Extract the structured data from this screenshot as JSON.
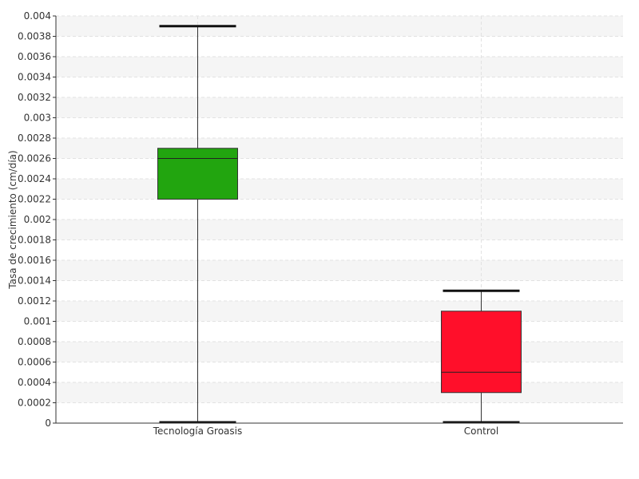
{
  "chart_data": {
    "type": "box",
    "title": "",
    "xlabel": "",
    "ylabel": "Tasa de crecimiento (cm/día)",
    "ylim": [
      0,
      0.004
    ],
    "yticks": [
      0,
      0.0002,
      0.0004,
      0.0006,
      0.0008,
      0.001,
      0.0012,
      0.0014,
      0.0016,
      0.0018,
      0.002,
      0.0022,
      0.0024,
      0.0026,
      0.0028,
      0.003,
      0.0032,
      0.0034,
      0.0036,
      0.0038,
      0.004
    ],
    "ytick_labels": [
      "0",
      "0.0002",
      "0.0004",
      "0.0006",
      "0.0008",
      "0.001",
      "0.0012",
      "0.0014",
      "0.0016",
      "0.0018",
      "0.002",
      "0.0022",
      "0.0024",
      "0.0026",
      "0.0028",
      "0.003",
      "0.0032",
      "0.0034",
      "0.0036",
      "0.0038",
      "0.004"
    ],
    "grid": true,
    "categories": [
      "Tecnología Groasis",
      "Control"
    ],
    "boxes": [
      {
        "category": "Tecnología Groasis",
        "min": 0,
        "q1": 0.0022,
        "median": 0.0026,
        "q3": 0.0027,
        "max": 0.0039,
        "color": "#22a50f"
      },
      {
        "category": "Control",
        "min": 0,
        "q1": 0.0003,
        "median": 0.0005,
        "q3": 0.0011,
        "max": 0.0013,
        "color": "#ff0f2a"
      }
    ]
  }
}
